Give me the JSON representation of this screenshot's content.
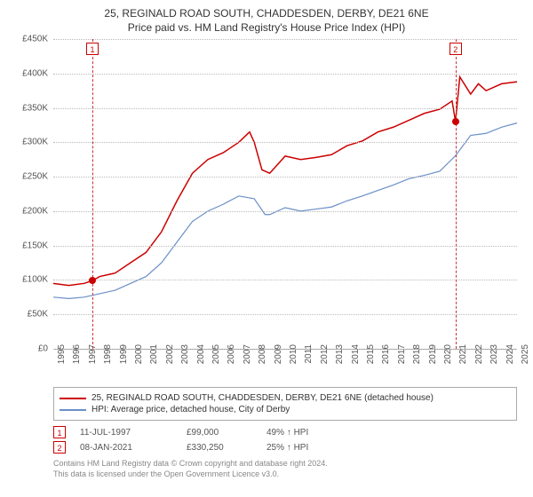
{
  "title": {
    "line1": "25, REGINALD ROAD SOUTH, CHADDESDEN, DERBY, DE21 6NE",
    "line2": "Price paid vs. HM Land Registry's House Price Index (HPI)"
  },
  "chart": {
    "type": "line",
    "background_color": "#ffffff",
    "grid_color": "#bbbbbb",
    "title_fontsize": 12,
    "label_fontsize": 10,
    "ylim": [
      0,
      450000
    ],
    "ytick_step": 50000,
    "yticks": [
      "£0",
      "£50K",
      "£100K",
      "£150K",
      "£200K",
      "£250K",
      "£300K",
      "£350K",
      "£400K",
      "£450K"
    ],
    "x_year_min": 1995,
    "x_year_max": 2025,
    "xticks": [
      "1995",
      "1996",
      "1997",
      "1998",
      "1999",
      "2000",
      "2001",
      "2002",
      "2003",
      "2004",
      "2005",
      "2006",
      "2007",
      "2008",
      "2009",
      "2010",
      "2011",
      "2012",
      "2013",
      "2014",
      "2015",
      "2016",
      "2017",
      "2018",
      "2019",
      "2020",
      "2021",
      "2022",
      "2023",
      "2024",
      "2025"
    ],
    "series": [
      {
        "name": "25, REGINALD ROAD SOUTH, CHADDESDEN, DERBY, DE21 6NE (detached house)",
        "color": "#cc0000",
        "line_width": 1.5,
        "data": [
          [
            1995,
            95000
          ],
          [
            1996,
            92000
          ],
          [
            1997,
            95000
          ],
          [
            1997.53,
            99000
          ],
          [
            1998,
            105000
          ],
          [
            1999,
            110000
          ],
          [
            2000,
            125000
          ],
          [
            2001,
            140000
          ],
          [
            2002,
            170000
          ],
          [
            2003,
            215000
          ],
          [
            2004,
            255000
          ],
          [
            2005,
            275000
          ],
          [
            2006,
            285000
          ],
          [
            2007,
            300000
          ],
          [
            2007.7,
            315000
          ],
          [
            2008,
            300000
          ],
          [
            2008.5,
            260000
          ],
          [
            2009,
            255000
          ],
          [
            2010,
            280000
          ],
          [
            2011,
            275000
          ],
          [
            2012,
            278000
          ],
          [
            2013,
            282000
          ],
          [
            2014,
            295000
          ],
          [
            2015,
            302000
          ],
          [
            2016,
            315000
          ],
          [
            2017,
            322000
          ],
          [
            2018,
            332000
          ],
          [
            2019,
            342000
          ],
          [
            2020,
            348000
          ],
          [
            2020.8,
            360000
          ],
          [
            2021.02,
            330250
          ],
          [
            2021.3,
            395000
          ],
          [
            2022,
            370000
          ],
          [
            2022.5,
            385000
          ],
          [
            2023,
            375000
          ],
          [
            2024,
            385000
          ],
          [
            2025,
            388000
          ]
        ]
      },
      {
        "name": "HPI: Average price, detached house, City of Derby",
        "color": "#6a8fc8",
        "line_width": 1.2,
        "data": [
          [
            1995,
            75000
          ],
          [
            1996,
            73000
          ],
          [
            1997,
            75000
          ],
          [
            1998,
            80000
          ],
          [
            1999,
            85000
          ],
          [
            2000,
            95000
          ],
          [
            2001,
            105000
          ],
          [
            2002,
            125000
          ],
          [
            2003,
            155000
          ],
          [
            2004,
            185000
          ],
          [
            2005,
            200000
          ],
          [
            2006,
            210000
          ],
          [
            2007,
            222000
          ],
          [
            2008,
            218000
          ],
          [
            2008.7,
            195000
          ],
          [
            2009,
            195000
          ],
          [
            2010,
            205000
          ],
          [
            2011,
            200000
          ],
          [
            2012,
            203000
          ],
          [
            2013,
            206000
          ],
          [
            2014,
            215000
          ],
          [
            2015,
            222000
          ],
          [
            2016,
            230000
          ],
          [
            2017,
            238000
          ],
          [
            2018,
            247000
          ],
          [
            2019,
            252000
          ],
          [
            2020,
            258000
          ],
          [
            2021,
            280000
          ],
          [
            2022,
            310000
          ],
          [
            2023,
            313000
          ],
          [
            2024,
            322000
          ],
          [
            2025,
            328000
          ]
        ]
      }
    ],
    "markers": [
      {
        "n": "1",
        "year": 1997.53,
        "value": 99000,
        "top_y": -2
      },
      {
        "n": "2",
        "year": 2021.02,
        "value": 330250,
        "top_y": -2
      }
    ]
  },
  "legend": [
    {
      "color": "#cc0000",
      "label": "25, REGINALD ROAD SOUTH, CHADDESDEN, DERBY, DE21 6NE (detached house)"
    },
    {
      "color": "#6a8fc8",
      "label": "HPI: Average price, detached house, City of Derby"
    }
  ],
  "marker_table": [
    {
      "n": "1",
      "date": "11-JUL-1997",
      "price": "£99,000",
      "delta": "49% ↑ HPI"
    },
    {
      "n": "2",
      "date": "08-JAN-2021",
      "price": "£330,250",
      "delta": "25% ↑ HPI"
    }
  ],
  "footer": {
    "line1": "Contains HM Land Registry data © Crown copyright and database right 2024.",
    "line2": "This data is licensed under the Open Government Licence v3.0."
  }
}
